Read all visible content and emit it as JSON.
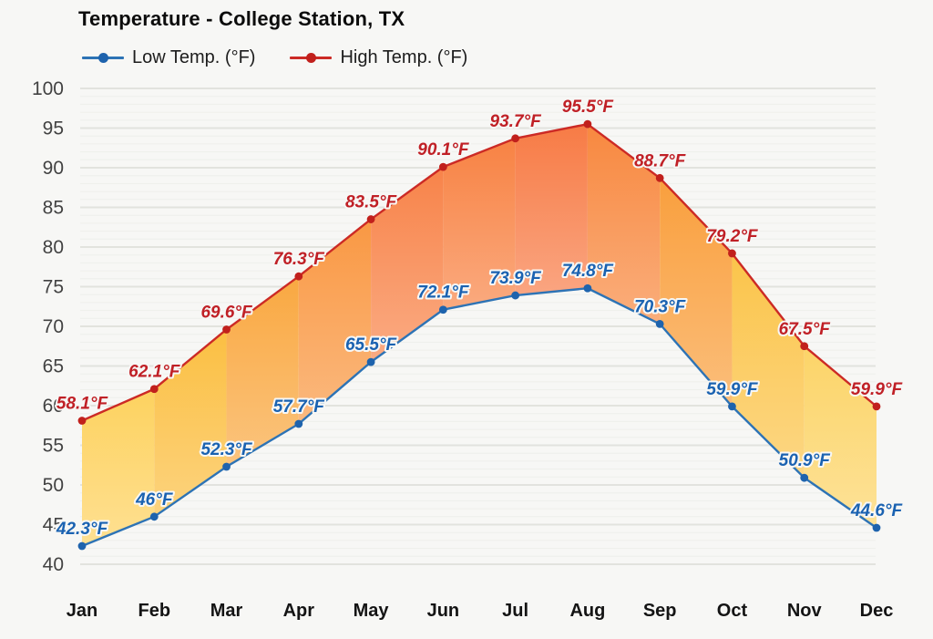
{
  "title": "Temperature - College Station, TX",
  "legend": [
    {
      "label": "Low Temp. (°F)"
    },
    {
      "label": "High Temp. (°F)"
    }
  ],
  "chart_data": {
    "type": "area",
    "title": "Temperature - College Station, TX",
    "categories": [
      "Jan",
      "Feb",
      "Mar",
      "Apr",
      "May",
      "Jun",
      "Jul",
      "Aug",
      "Sep",
      "Oct",
      "Nov",
      "Dec"
    ],
    "series": [
      {
        "name": "Low Temp. (°F)",
        "color": "#2d73b5",
        "point_color": "#1e63ad",
        "label_color": "#1a62b1",
        "values": [
          42.3,
          46,
          52.3,
          57.7,
          65.5,
          72.1,
          73.9,
          74.8,
          70.3,
          59.9,
          50.9,
          44.6
        ]
      },
      {
        "name": "High Temp. (°F)",
        "color": "#cc2a25",
        "point_color": "#c1201c",
        "label_color": "#c02026",
        "values": [
          58.1,
          62.1,
          69.6,
          76.3,
          83.5,
          90.1,
          93.7,
          95.5,
          88.7,
          79.2,
          67.5,
          59.9
        ]
      }
    ],
    "band_colors_between_months": [
      "#fdd25f",
      "#fbbf42",
      "#f9a841",
      "#f99843",
      "#f88349",
      "#f88243",
      "#f77b45",
      "#f8883f",
      "#f99f3d",
      "#fbc44a",
      "#fcd468"
    ],
    "value_suffix": "°F",
    "xlabel": "",
    "ylabel": "",
    "ylim": [
      40,
      100
    ],
    "ytick_step": 5,
    "yticks": [
      40,
      45,
      50,
      55,
      60,
      65,
      70,
      75,
      80,
      85,
      90,
      95,
      100
    ],
    "grid": true,
    "legend_position": "top-left"
  }
}
